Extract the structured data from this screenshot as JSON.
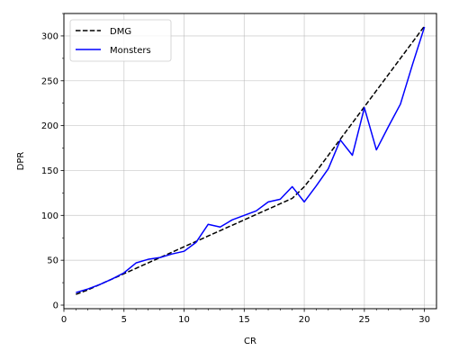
{
  "chart_data": {
    "type": "line",
    "xlabel": "CR",
    "ylabel": "DPR",
    "xlim": [
      0,
      31
    ],
    "ylim": [
      -4,
      325
    ],
    "xticks": [
      0,
      5,
      10,
      15,
      20,
      25,
      30
    ],
    "yticks": [
      0,
      50,
      100,
      150,
      200,
      250,
      300
    ],
    "grid": true,
    "legend_position": "upper-left",
    "series": [
      {
        "name": "DMG",
        "color": "#000000",
        "line_style": "dashed",
        "x": [
          1,
          2,
          3,
          4,
          5,
          6,
          7,
          8,
          9,
          10,
          11,
          12,
          13,
          14,
          15,
          16,
          17,
          18,
          19,
          20,
          21,
          22,
          23,
          24,
          25,
          26,
          27,
          28,
          29,
          30
        ],
        "y": [
          12,
          17,
          23,
          29,
          35,
          41,
          47,
          53,
          59,
          65,
          71,
          77,
          83,
          89,
          95,
          101,
          107,
          113,
          119,
          132,
          149,
          167,
          185,
          203,
          221,
          239,
          257,
          275,
          293,
          311
        ]
      },
      {
        "name": "Monsters",
        "color": "#0000ff",
        "line_style": "solid",
        "x": [
          1,
          2,
          3,
          4,
          5,
          6,
          7,
          8,
          9,
          10,
          11,
          12,
          13,
          14,
          15,
          16,
          17,
          18,
          19,
          20,
          21,
          22,
          23,
          24,
          25,
          26,
          27,
          28,
          29,
          30
        ],
        "y": [
          14,
          18,
          23,
          29,
          36,
          47,
          51,
          53,
          57,
          60,
          70,
          90,
          87,
          95,
          100,
          105,
          115,
          118,
          132,
          115,
          133,
          152,
          184,
          167,
          220,
          173,
          199,
          224,
          268,
          310
        ]
      }
    ]
  }
}
